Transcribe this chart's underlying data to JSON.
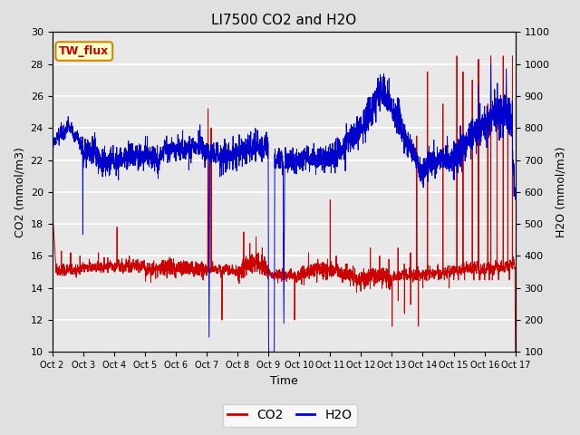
{
  "title": "LI7500 CO2 and H2O",
  "xlabel": "Time",
  "ylabel_left": "CO2 (mmol/m3)",
  "ylabel_right": "H2O (mmol/m3)",
  "ylim_left": [
    10,
    30
  ],
  "ylim_right": [
    100,
    1100
  ],
  "yticks_left": [
    10,
    12,
    14,
    16,
    18,
    20,
    22,
    24,
    26,
    28,
    30
  ],
  "yticks_right": [
    100,
    200,
    300,
    400,
    500,
    600,
    700,
    800,
    900,
    1000,
    1100
  ],
  "xtick_labels": [
    "Oct 2",
    "Oct 3",
    "Oct 4",
    "Oct 5",
    "Oct 6",
    "Oct 7",
    "Oct 8",
    "Oct 9",
    "Oct 10",
    "Oct 11",
    "Oct 12",
    "Oct 13",
    "Oct 14",
    "Oct 15",
    "Oct 16",
    "Oct 17"
  ],
  "bg_color": "#e0e0e0",
  "plot_bg_color": "#e8e8e8",
  "grid_color": "#ffffff",
  "co2_color": "#cc0000",
  "h2o_color": "#0000cc",
  "legend_co2": "CO2",
  "legend_h2o": "H2O",
  "tag_text": "TW_flux",
  "tag_bg": "#ffffcc",
  "tag_border": "#cc8800",
  "tag_text_color": "#cc0000",
  "title_fontsize": 11,
  "axis_fontsize": 9,
  "tick_fontsize": 8,
  "legend_fontsize": 10
}
